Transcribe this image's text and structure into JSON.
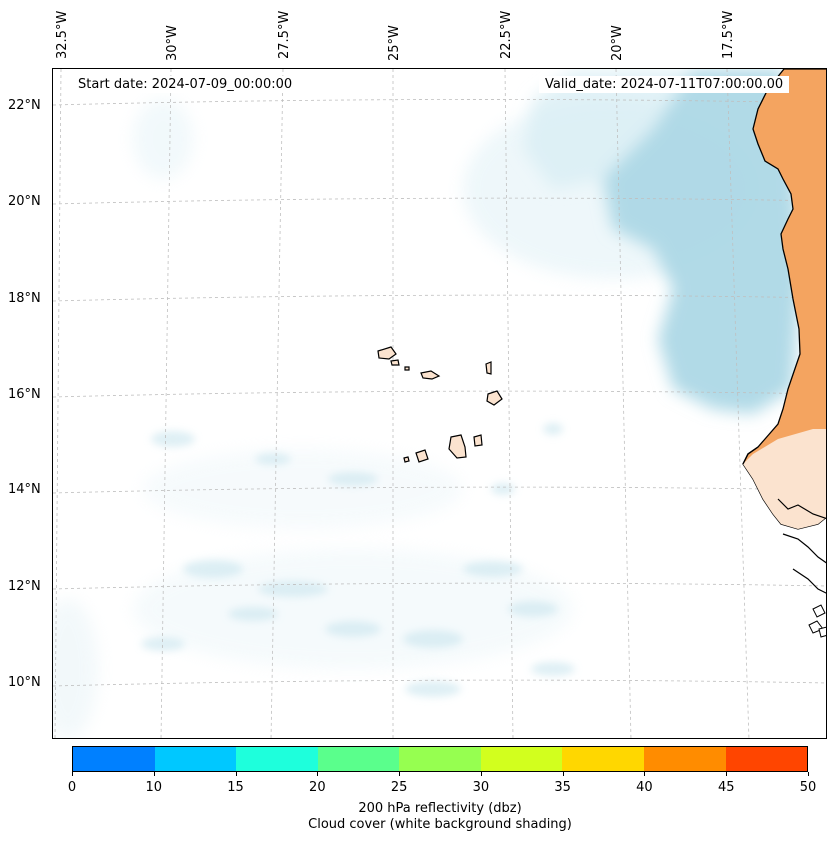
{
  "map": {
    "start_date": "Start date: 2024-07-09_00:00:00",
    "valid_date": "Valid_date: 2024-07-11T07:00:00.00",
    "lon_labels": [
      "32.5°W",
      "30°W",
      "27.5°W",
      "25°W",
      "22.5°W",
      "20°W",
      "17.5°W"
    ],
    "lat_labels": [
      "22°N",
      "20°N",
      "18°N",
      "16°N",
      "14°N",
      "12°N",
      "10°N"
    ],
    "colors": {
      "land": "#f4a460",
      "cloud": "#add8e6",
      "coast": "#000000"
    }
  },
  "colorbar": {
    "ticks": [
      "0",
      "10",
      "15",
      "20",
      "25",
      "30",
      "35",
      "40",
      "45",
      "50"
    ],
    "colors": [
      "#0080ff",
      "#00c8ff",
      "#1effdc",
      "#5aff8c",
      "#96ff50",
      "#d2ff1e",
      "#ffd700",
      "#ff8c00",
      "#ff4500"
    ],
    "title_line1": "200 hPa reflectivity (dbz)",
    "title_line2": "Cloud cover (white background shading)"
  }
}
